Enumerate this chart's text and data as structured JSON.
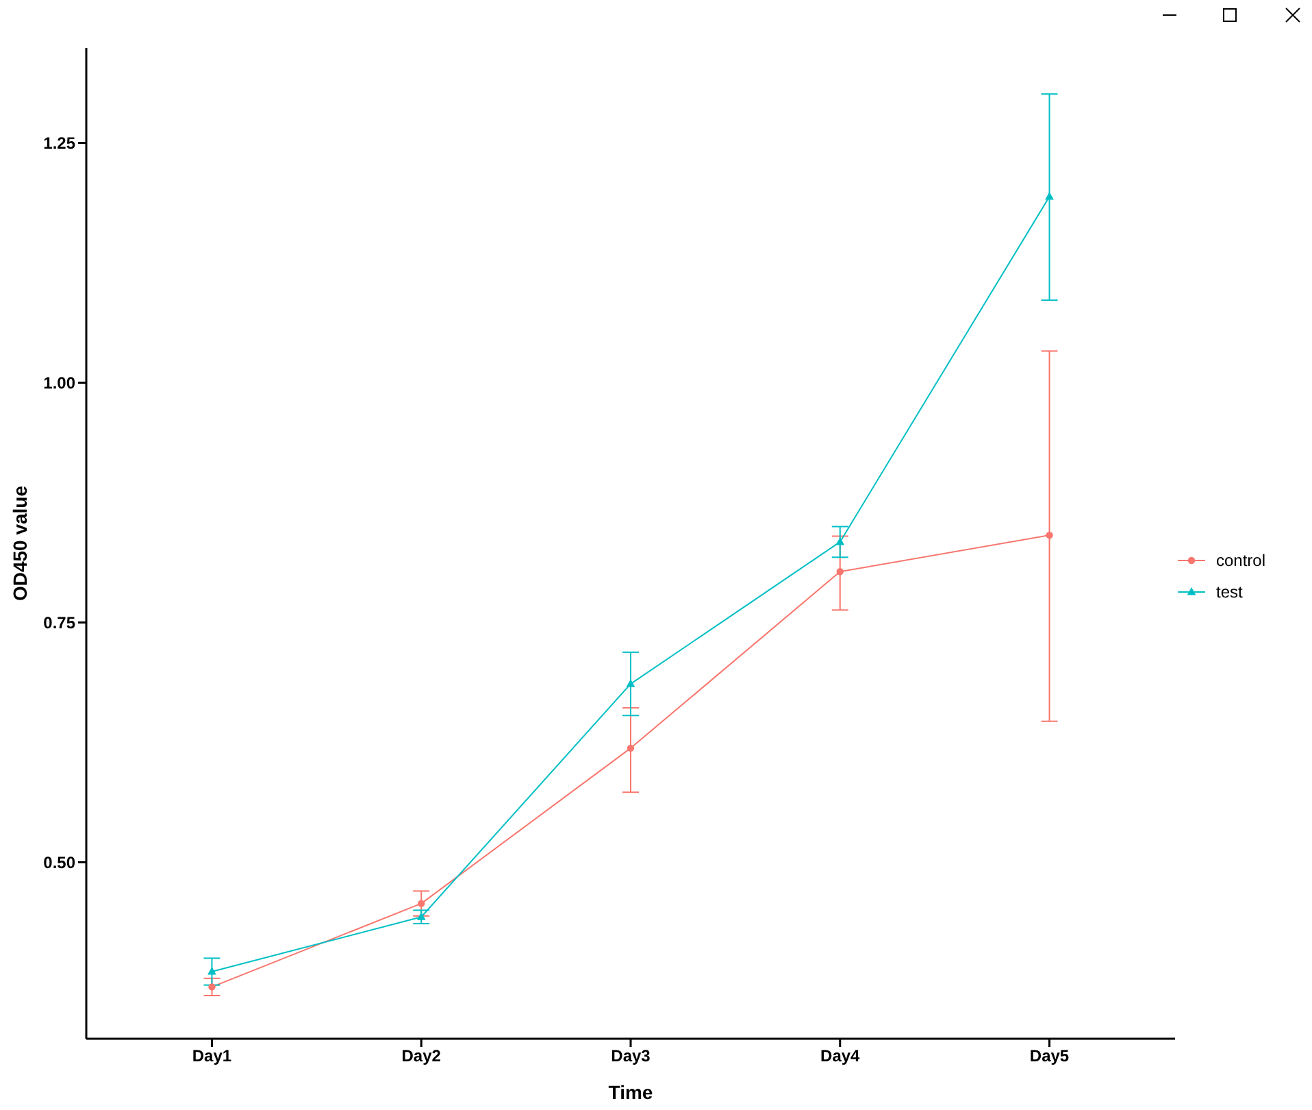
{
  "chart_data": {
    "type": "line",
    "xlabel": "Time",
    "ylabel": "OD450 value",
    "categories": [
      "Day1",
      "Day2",
      "Day3",
      "Day4",
      "Day5"
    ],
    "series": [
      {
        "name": "control",
        "color": "#f8766d",
        "marker": "circle",
        "values": [
          0.37,
          0.457,
          0.619,
          0.803,
          0.841
        ],
        "errors": [
          [
            0.361,
            0.379
          ],
          [
            0.444,
            0.47
          ],
          [
            0.573,
            0.661
          ],
          [
            0.763,
            0.84
          ],
          [
            0.647,
            1.033
          ]
        ]
      },
      {
        "name": "test",
        "color": "#00bfc4",
        "marker": "triangle",
        "values": [
          0.386,
          0.443,
          0.686,
          0.834,
          1.194
        ],
        "errors": [
          [
            0.372,
            0.4
          ],
          [
            0.436,
            0.45
          ],
          [
            0.653,
            0.719
          ],
          [
            0.818,
            0.85
          ],
          [
            1.086,
            1.301
          ]
        ]
      }
    ],
    "ylim": [
      0.316,
      1.349
    ],
    "yticks": [
      {
        "value": 0.5,
        "label": "0.50"
      },
      {
        "value": 0.75,
        "label": "0.75"
      },
      {
        "value": 1,
        "label": "1.00"
      },
      {
        "value": 1.25,
        "label": "1.25"
      }
    ],
    "grid": false,
    "legend": "right",
    "line_style": "solid"
  }
}
